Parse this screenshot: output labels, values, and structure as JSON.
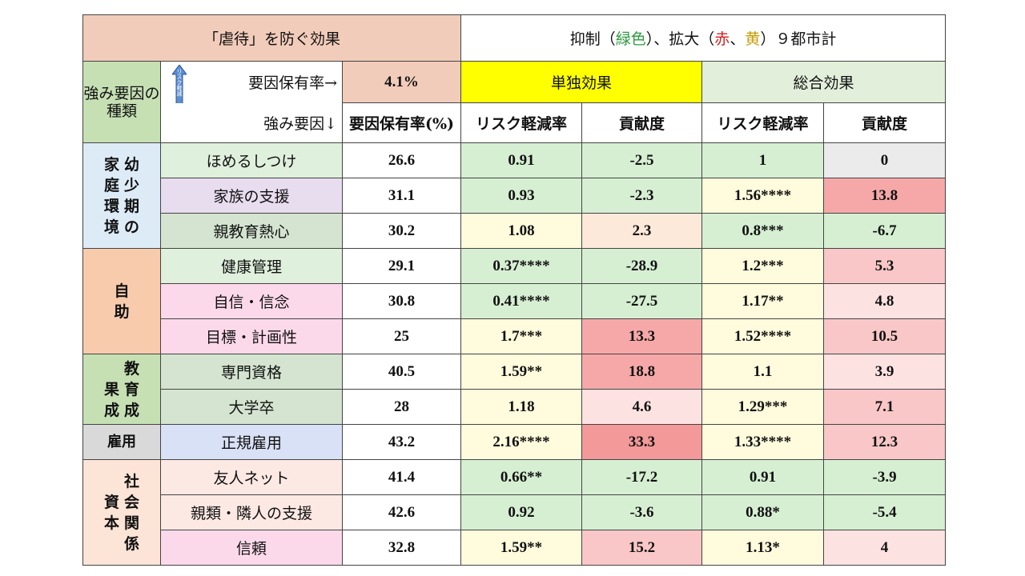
{
  "title": "「虐待」を防ぐ効果",
  "subtitle": {
    "prefix": "抑制（",
    "green": "緑色",
    "mid": "）、拡大（",
    "red": "赤",
    "sep": "、",
    "yellow": "黄",
    "suffix": "）９都市計"
  },
  "type_header": "強み要因の種類",
  "arrow_text": "リスク軽減",
  "rate_label": "要因保有率→",
  "rate_value": "4.1%",
  "alone_header": "単独効果",
  "total_header": "総合効果",
  "factor_label": "強み要因↓",
  "columns": [
    "要因保有率(%)",
    "リスク軽減率",
    "貢献度",
    "リスク軽減率",
    "貢献度"
  ],
  "colors": {
    "green": "#d6efd2",
    "yellow": "#fffbdc",
    "red": "#f39999",
    "title_bg": "#f2ccba",
    "alone_bg": "#ffff00"
  },
  "categories": [
    {
      "label": "幼少期の家庭環境",
      "rows": [
        {
          "factor": "ほめるしつけ",
          "rate": "26.6",
          "a_risk": "0.91",
          "a_contrib": "-2.5",
          "t_risk": "1",
          "t_contrib": "0"
        },
        {
          "factor": "家族の支援",
          "rate": "31.1",
          "a_risk": "0.93",
          "a_contrib": "-2.3",
          "t_risk": "1.56****",
          "t_contrib": "13.8"
        },
        {
          "factor": "親教育熱心",
          "rate": "30.2",
          "a_risk": "1.08",
          "a_contrib": "2.3",
          "t_risk": "0.8***",
          "t_contrib": "-6.7"
        }
      ]
    },
    {
      "label": "自助",
      "rows": [
        {
          "factor": "健康管理",
          "rate": "29.1",
          "a_risk": "0.37****",
          "a_contrib": "-28.9",
          "t_risk": "1.2***",
          "t_contrib": "5.3"
        },
        {
          "factor": "自信・信念",
          "rate": "30.8",
          "a_risk": "0.41****",
          "a_contrib": "-27.5",
          "t_risk": "1.17**",
          "t_contrib": "4.8"
        },
        {
          "factor": "目標・計画性",
          "rate": "25",
          "a_risk": "1.7***",
          "a_contrib": "13.3",
          "t_risk": "1.52****",
          "t_contrib": "10.5"
        }
      ]
    },
    {
      "label": "教育成果",
      "rows": [
        {
          "factor": "専門資格",
          "rate": "40.5",
          "a_risk": "1.59**",
          "a_contrib": "18.8",
          "t_risk": "1.1",
          "t_contrib": "3.9"
        },
        {
          "factor": "大学卒",
          "rate": "28",
          "a_risk": "1.18",
          "a_contrib": "4.6",
          "t_risk": "1.29***",
          "t_contrib": "7.1"
        }
      ]
    },
    {
      "label": "雇用",
      "rows": [
        {
          "factor": "正規雇用",
          "rate": "43.2",
          "a_risk": "2.16****",
          "a_contrib": "33.3",
          "t_risk": "1.33****",
          "t_contrib": "12.3"
        }
      ]
    },
    {
      "label": "社会関係資本",
      "rows": [
        {
          "factor": "友人ネット",
          "rate": "41.4",
          "a_risk": "0.66**",
          "a_contrib": "-17.2",
          "t_risk": "0.91",
          "t_contrib": "-3.9"
        },
        {
          "factor": "親類・隣人の支援",
          "rate": "42.6",
          "a_risk": "0.92",
          "a_contrib": "-3.6",
          "t_risk": "0.88*",
          "t_contrib": "-5.4"
        },
        {
          "factor": "信頼",
          "rate": "32.8",
          "a_risk": "1.59**",
          "a_contrib": "15.2",
          "t_risk": "1.13*",
          "t_contrib": "4"
        }
      ]
    }
  ]
}
